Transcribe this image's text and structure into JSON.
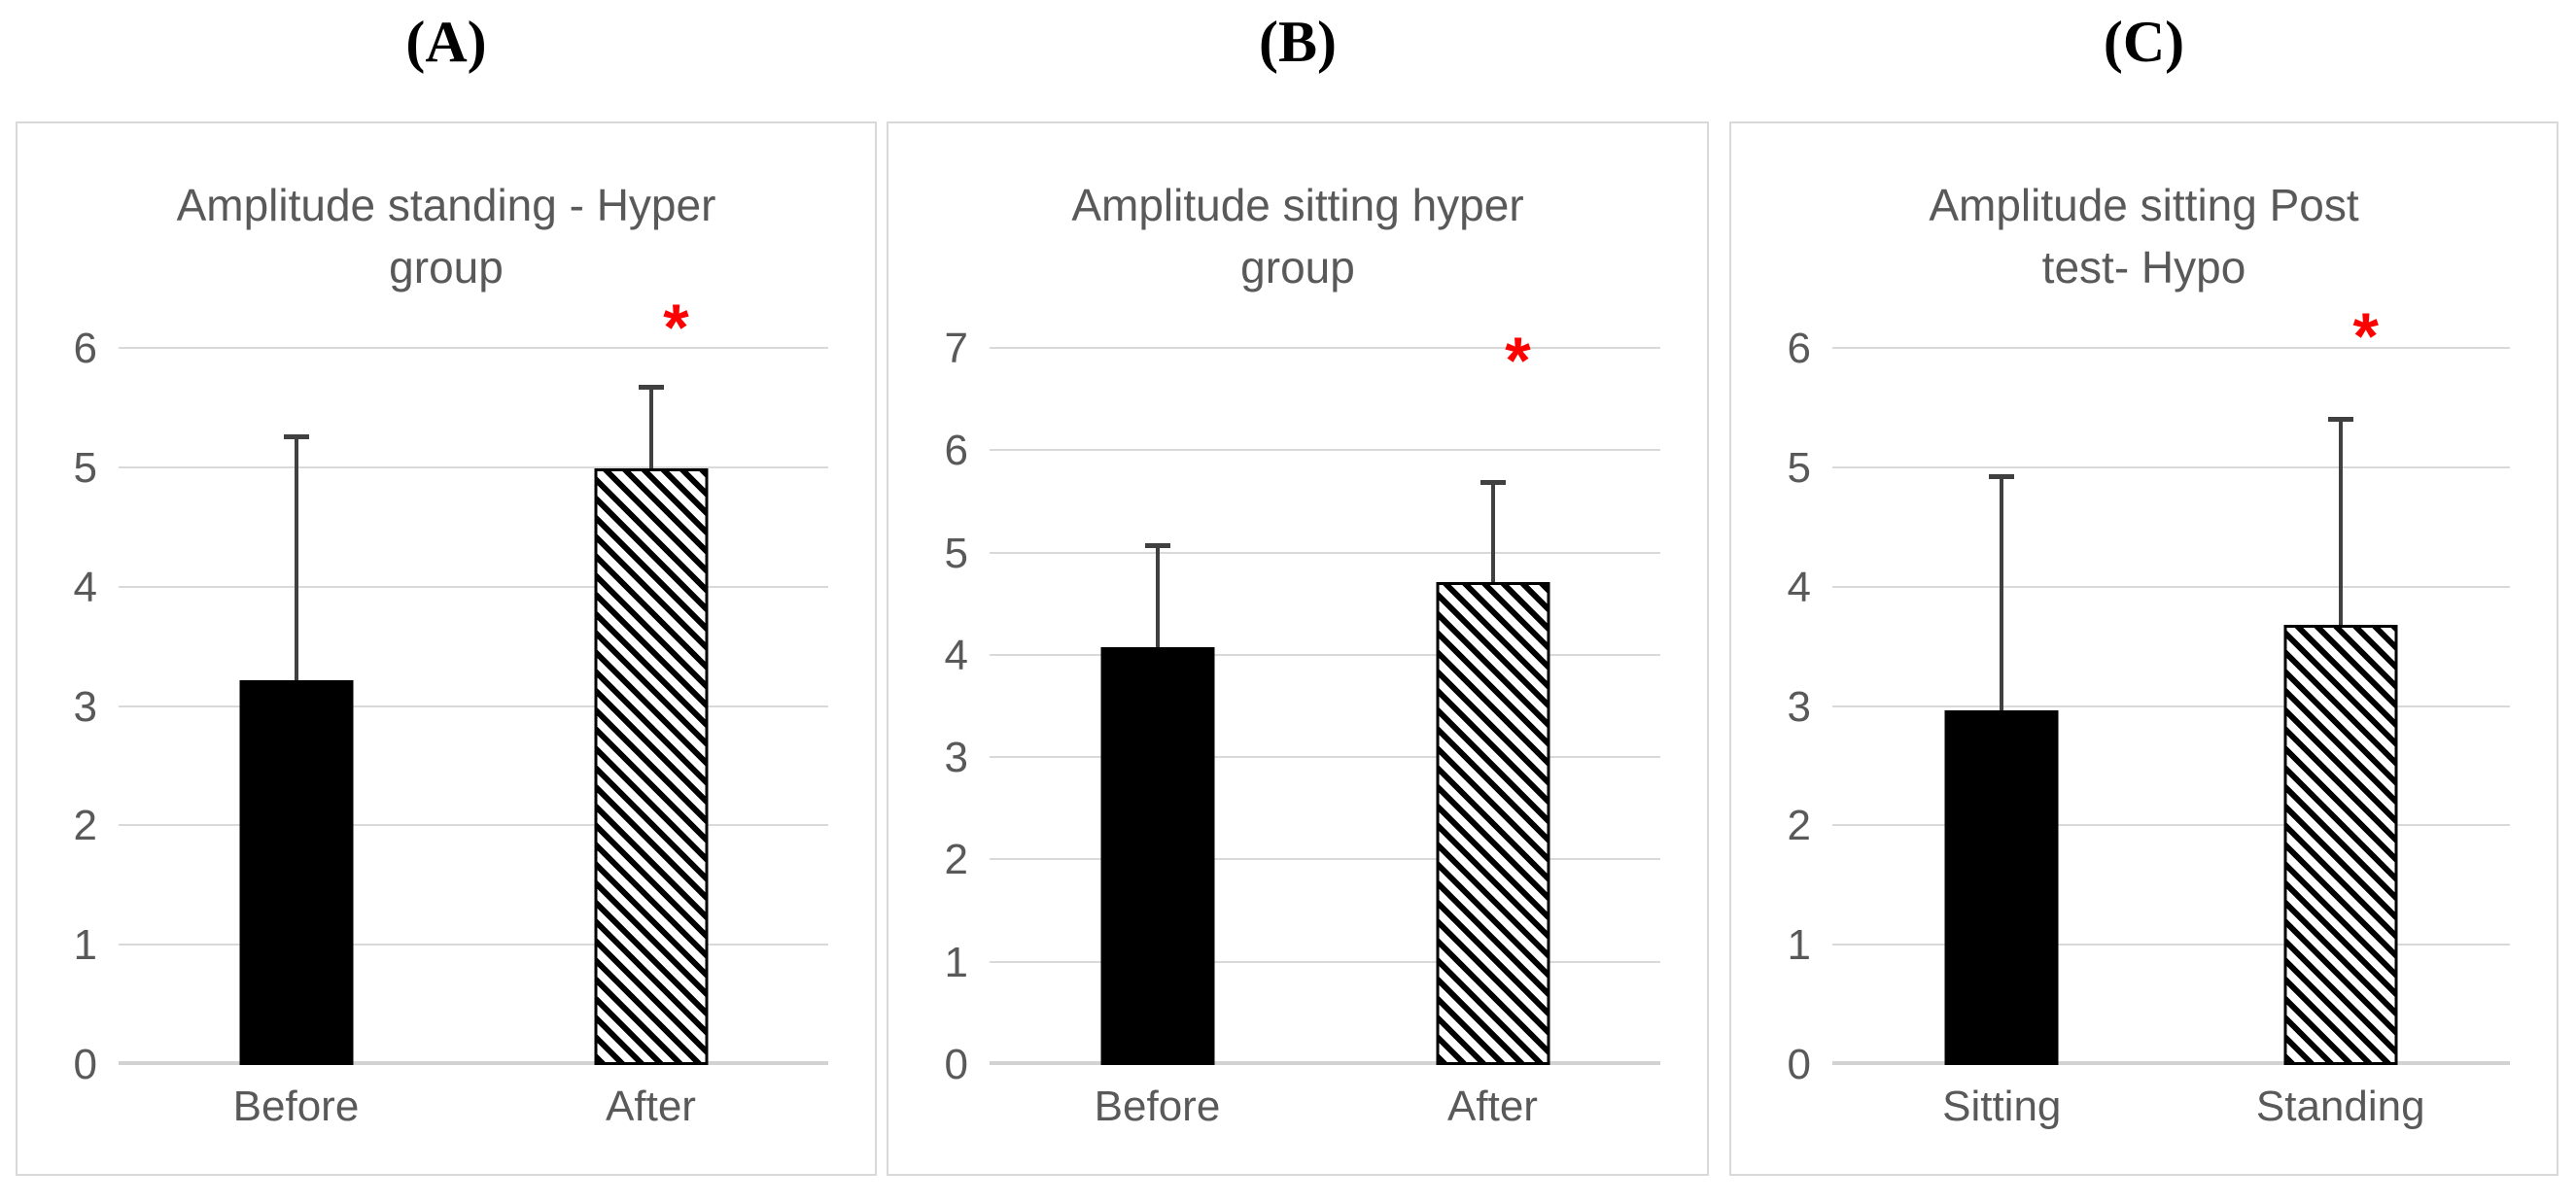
{
  "style": {
    "background": "#FFFFFF",
    "text_color": "#595959",
    "gridline_color": "#D9D9D9",
    "axis_line_color": "#D2D2D2",
    "panel_border_color": "#D9D9D9",
    "bar_fill_black": "#000000",
    "error_bar_color": "#404040",
    "significance_color": "#FF0000"
  },
  "chart_data": [
    {
      "type": "bar",
      "panel_label": "(A)",
      "title": "Amplitude standing - Hyper group",
      "title_lines": [
        "Amplitude standing - Hyper",
        "group"
      ],
      "categories": [
        "Before",
        "After"
      ],
      "values": [
        3.22,
        5.0
      ],
      "error_top": [
        5.28,
        5.7
      ],
      "ylim": [
        0,
        6
      ],
      "ytick_step": 1,
      "grid": true,
      "bar_styles": [
        "solid-black",
        "diagonal-hatch"
      ],
      "significance": {
        "symbol": "*",
        "over_category": "After",
        "position": "above"
      }
    },
    {
      "type": "bar",
      "panel_label": "(B)",
      "title": "Amplitude sitting hyper group",
      "title_lines": [
        "Amplitude sitting hyper",
        "group"
      ],
      "categories": [
        "Before",
        "After"
      ],
      "values": [
        4.08,
        4.72
      ],
      "error_top": [
        5.1,
        5.72
      ],
      "ylim": [
        0,
        7
      ],
      "ytick_step": 1,
      "grid": true,
      "bar_styles": [
        "solid-black",
        "diagonal-hatch"
      ],
      "significance": {
        "symbol": "*",
        "over_category": "After",
        "position": "on-line"
      }
    },
    {
      "type": "bar",
      "panel_label": "(C)",
      "title": "Amplitude sitting Post test- Hypo",
      "title_lines": [
        "Amplitude sitting Post",
        "test- Hypo"
      ],
      "categories": [
        "Sitting",
        "Standing"
      ],
      "values": [
        2.97,
        3.69
      ],
      "error_top": [
        4.95,
        5.43
      ],
      "ylim": [
        0,
        6
      ],
      "ytick_step": 1,
      "grid": true,
      "bar_styles": [
        "solid-black",
        "diagonal-hatch"
      ],
      "significance": {
        "symbol": "*",
        "over_category": "Standing",
        "position": "slightly-above"
      }
    }
  ]
}
